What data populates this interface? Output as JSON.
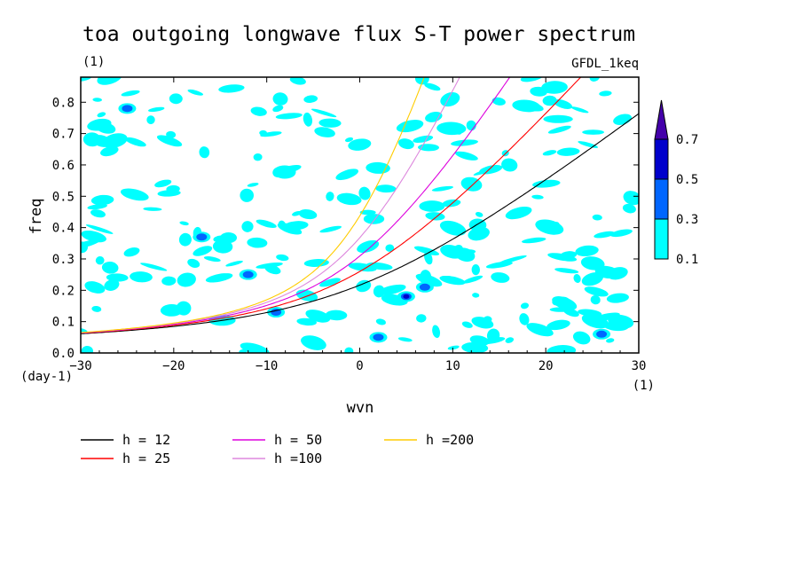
{
  "chart_data": {
    "type": "heatmap",
    "title": "toa outgoing longwave flux S-T power spectrum",
    "units_label": "(1)",
    "experiment_label": "GFDL_1keq",
    "xlabel": "wvn",
    "ylabel": "freq",
    "x_units": "(1)",
    "y_units": "(day-1)",
    "xlim": [
      -30,
      30
    ],
    "ylim": [
      0,
      0.88
    ],
    "x_ticks": [
      "-30",
      "-20",
      "-10",
      "0",
      "10",
      "20",
      "30"
    ],
    "y_ticks": [
      "0.0",
      "0.1",
      "0.2",
      "0.3",
      "0.4",
      "0.5",
      "0.6",
      "0.7",
      "0.8"
    ],
    "colorbar": {
      "levels": [
        "0.1",
        "0.3",
        "0.5",
        "0.7"
      ],
      "colors": [
        "#00ffff",
        "#0066ff",
        "#0000cc",
        "#4400aa"
      ]
    },
    "series": [
      {
        "name": "h = 12",
        "h": 12,
        "color": "#000000"
      },
      {
        "name": "h = 25",
        "h": 25,
        "color": "#ff0000"
      },
      {
        "name": "h = 50",
        "h": 50,
        "color": "#dd00dd"
      },
      {
        "name": "h =100",
        "h": 100,
        "color": "#dd88dd"
      },
      {
        "name": "h =200",
        "h": 200,
        "color": "#ffcc00"
      }
    ],
    "contours_note": "scattered cyan patches (0.1-0.3) over the domain; a few blue (0.3-0.5) and dark blue (0.5-0.7) spots",
    "hotspots": [
      {
        "wvn": 5,
        "freq": 0.18,
        "level": 0.7
      },
      {
        "wvn": -17,
        "freq": 0.37,
        "level": 0.5
      },
      {
        "wvn": -25,
        "freq": 0.78,
        "level": 0.5
      },
      {
        "wvn": 7,
        "freq": 0.21,
        "level": 0.5
      },
      {
        "wvn": -12,
        "freq": 0.25,
        "level": 0.5
      },
      {
        "wvn": 2,
        "freq": 0.05,
        "level": 0.5
      },
      {
        "wvn": 26,
        "freq": 0.06,
        "level": 0.5
      },
      {
        "wvn": -9,
        "freq": 0.13,
        "level": 0.5
      }
    ],
    "grid": false
  }
}
